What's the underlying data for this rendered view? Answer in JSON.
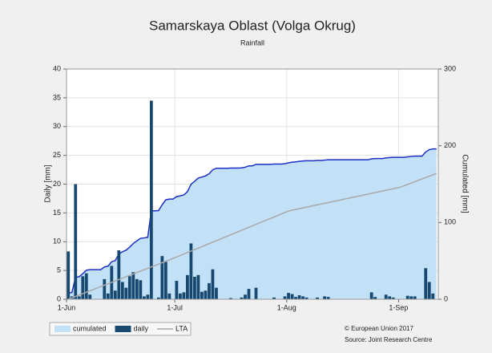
{
  "chart_data": {
    "type": "bar",
    "title": "Samarskaya Oblast (Volga Okrug)",
    "subtitle": "Rainfall",
    "ylabel": "Daily [mm]",
    "y2label": "Cumulated [mm]",
    "footer": [
      "© European Union 2017",
      "Source: Joint Research Centre"
    ],
    "grid": true,
    "legend": "bottom-left",
    "ylim": [
      0,
      40
    ],
    "yticks": [
      0,
      5,
      10,
      15,
      20,
      25,
      30,
      35,
      40
    ],
    "y2lim": [
      0,
      300
    ],
    "y2ticks": [
      0,
      100,
      200,
      300
    ],
    "categories": [
      "1-Jun",
      null,
      null,
      null,
      null,
      null,
      null,
      null,
      null,
      null,
      null,
      null,
      null,
      null,
      null,
      null,
      null,
      null,
      null,
      null,
      null,
      null,
      null,
      null,
      null,
      null,
      null,
      null,
      null,
      null,
      "1-Jul",
      null,
      null,
      null,
      null,
      null,
      null,
      null,
      null,
      null,
      null,
      null,
      null,
      null,
      null,
      null,
      null,
      null,
      null,
      null,
      null,
      null,
      null,
      null,
      null,
      null,
      null,
      null,
      null,
      null,
      null,
      "1-Aug",
      null,
      null,
      null,
      null,
      null,
      null,
      null,
      null,
      null,
      null,
      null,
      null,
      null,
      null,
      null,
      null,
      null,
      null,
      null,
      null,
      null,
      null,
      null,
      null,
      null,
      null,
      null,
      null,
      null,
      null,
      "1-Sep",
      null,
      null,
      null,
      null,
      null,
      null,
      null,
      null,
      null,
      null
    ],
    "series": [
      {
        "name": "cumulated",
        "type": "area",
        "axis": "y2",
        "color": "#c2e1f7",
        "line_color": "#1c2fc4",
        "values": [
          8.3,
          8.8,
          28.8,
          29.3,
          33.3,
          37.8,
          38.6,
          38.6,
          38.6,
          38.6,
          42.1,
          43.1,
          48.9,
          50.4,
          58.9,
          61.9,
          63.9,
          67.9,
          72.6,
          76.1,
          79.4,
          79.9,
          80.7,
          115.2,
          115.2,
          115.5,
          123,
          129.5,
          130.5,
          130.5,
          133.7,
          134.7,
          135.9,
          140.1,
          149.8,
          153.7,
          157.9,
          159.2,
          160.7,
          163.5,
          168.7,
          170.7,
          170.7,
          170.7,
          170.7,
          170.9,
          170.9,
          170.9,
          171.2,
          172,
          173.8,
          173.8,
          175.8,
          175.8,
          175.8,
          175.8,
          175.8,
          176.1,
          176.1,
          176.1,
          176.6,
          177.7,
          178.6,
          179,
          179.7,
          180.2,
          180.5,
          180.5,
          180.5,
          180.8,
          180.8,
          181.3,
          181.7,
          181.7,
          181.7,
          181.7,
          181.7,
          181.7,
          181.7,
          181.7,
          181.7,
          181.7,
          181.7,
          181.7,
          182.9,
          183.3,
          183.3,
          183.3,
          184.1,
          184.6,
          184.9,
          184.9,
          184.9,
          184.9,
          185.5,
          186,
          186.5,
          186.5,
          186.5,
          191.9,
          194.9,
          195.9,
          195.9
        ]
      },
      {
        "name": "daily",
        "type": "bar",
        "color": "#17486f",
        "values": [
          8.3,
          0.5,
          20,
          0.5,
          4,
          4.5,
          0.8,
          0,
          0,
          0,
          3.5,
          1,
          5.8,
          1.5,
          8.5,
          3,
          2,
          4,
          4.7,
          3.5,
          3.3,
          0.5,
          0.8,
          34.5,
          0,
          0.3,
          7.5,
          6.5,
          1,
          0,
          3.2,
          1,
          1.2,
          4.2,
          9.7,
          3.9,
          4.2,
          1.3,
          1.5,
          2.8,
          5.2,
          2,
          0,
          0,
          0,
          0.2,
          0,
          0,
          0.3,
          0.8,
          1.8,
          0,
          2,
          0,
          0,
          0,
          0,
          0.3,
          0,
          0,
          0.5,
          1.1,
          0.9,
          0.4,
          0.7,
          0.5,
          0.3,
          0,
          0,
          0.3,
          0,
          0.5,
          0.4,
          0,
          0,
          0,
          0,
          0,
          0,
          0,
          0,
          0,
          0,
          0,
          1.2,
          0.4,
          0,
          0,
          0.8,
          0.5,
          0.3,
          0,
          0,
          0,
          0.6,
          0.5,
          0.5,
          0,
          0,
          5.4,
          3,
          1,
          0
        ]
      },
      {
        "name": "LTA",
        "type": "line",
        "axis": "y2",
        "color": "#a8a8a8",
        "values": [
          0,
          1.8,
          3.7,
          5.5,
          7.3,
          9.2,
          11,
          12.8,
          14.7,
          16.5,
          18.3,
          20.2,
          22,
          23.8,
          25.7,
          27.5,
          29.3,
          31.2,
          33,
          34.8,
          36.7,
          38.5,
          40.3,
          42.2,
          44,
          45.8,
          47.7,
          49.5,
          51.3,
          53.2,
          55,
          57,
          58.9,
          60.9,
          62.8,
          64.7,
          66.6,
          68.5,
          70.5,
          72.4,
          74.4,
          76.3,
          78.2,
          80.2,
          82.1,
          84,
          86,
          87.9,
          89.8,
          91.8,
          93.7,
          95.6,
          97.6,
          99.5,
          101.4,
          103.4,
          105.3,
          107.2,
          109.2,
          111.1,
          113,
          115,
          116,
          117,
          118,
          119,
          120,
          121,
          122,
          123,
          124,
          125,
          126,
          127,
          128,
          129,
          130,
          131,
          132,
          133,
          134,
          135,
          136,
          137,
          138,
          139,
          140,
          141,
          142,
          143,
          144,
          145,
          146,
          147.8,
          149.6,
          151.4,
          153.2,
          155,
          156.8,
          158.6,
          160.4,
          162.2,
          164
        ]
      }
    ]
  }
}
